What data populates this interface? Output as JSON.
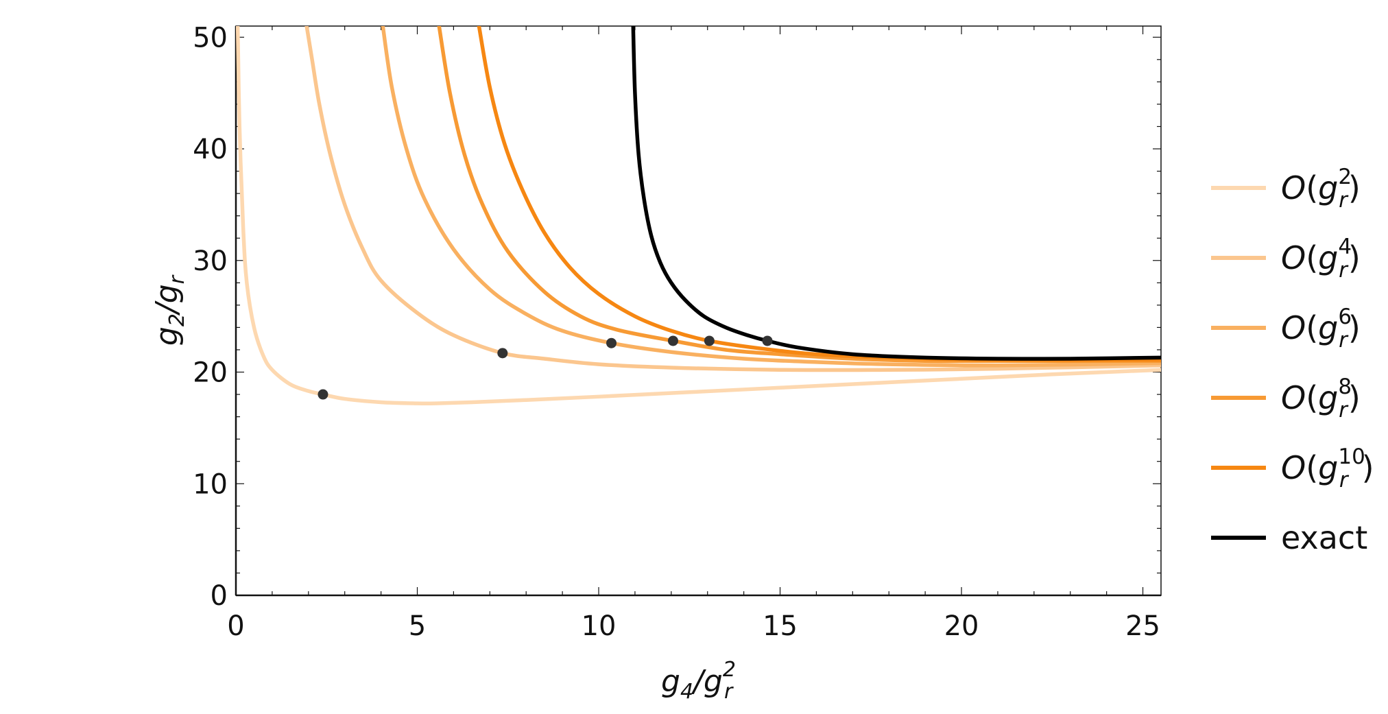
{
  "chart_data": {
    "type": "line",
    "title": "",
    "xlabel": {
      "base": "g",
      "base_sub": "4",
      "sep": "/",
      "den": "g",
      "den_sub": "r",
      "den_sup": "2"
    },
    "ylabel": {
      "base": "g",
      "base_sub": "2",
      "sep": "/",
      "den": "g",
      "den_sub": "r"
    },
    "xlim": [
      0,
      25.5
    ],
    "ylim": [
      0,
      51
    ],
    "xticks": [
      0,
      5,
      10,
      15,
      20,
      25
    ],
    "yticks": [
      0,
      10,
      20,
      30,
      40,
      50
    ],
    "grid": false,
    "legend_position": "right",
    "series": [
      {
        "name": "O(g_r^2)",
        "label_prefix": "O(",
        "label_base": "g",
        "label_sub": "r",
        "label_sup": "2",
        "label_suffix": ")",
        "color": "#fdd8b0",
        "x": [
          0.05,
          0.1,
          0.2,
          0.3,
          0.5,
          0.75,
          1.0,
          1.5,
          2.0,
          2.4,
          3.0,
          4.0,
          5.0,
          5.5,
          6.5,
          8.0,
          10.0,
          12.5,
          15.0,
          17.5,
          20.0,
          22.5,
          25.5
        ],
        "y": [
          51,
          42,
          33,
          28,
          24,
          21.5,
          20.2,
          18.9,
          18.3,
          18.0,
          17.6,
          17.3,
          17.2,
          17.2,
          17.3,
          17.5,
          17.8,
          18.2,
          18.6,
          19.0,
          19.4,
          19.8,
          20.2
        ]
      },
      {
        "name": "O(g_r^4)",
        "label_prefix": "O(",
        "label_base": "g",
        "label_sub": "r",
        "label_sup": "4",
        "label_suffix": ")",
        "color": "#fbc68e",
        "x": [
          1.95,
          2.1,
          2.3,
          2.6,
          3.0,
          3.5,
          4.0,
          5.0,
          6.0,
          7.35,
          8.5,
          10.0,
          12.0,
          15.0,
          18.0,
          21.0,
          25.5
        ],
        "y": [
          51,
          48,
          44,
          39.5,
          35,
          31,
          28.2,
          25.3,
          23.3,
          21.7,
          21.2,
          20.7,
          20.4,
          20.2,
          20.2,
          20.3,
          20.6
        ]
      },
      {
        "name": "O(g_r^6)",
        "label_prefix": "O(",
        "label_base": "g",
        "label_sub": "r",
        "label_sup": "6",
        "label_suffix": ")",
        "color": "#f9b060",
        "x": [
          4.05,
          4.3,
          4.7,
          5.2,
          6.0,
          7.0,
          8.0,
          9.0,
          10.35,
          12.0,
          14.0,
          16.0,
          18.0,
          21.0,
          25.5
        ],
        "y": [
          51,
          45.5,
          40,
          35.5,
          31,
          27.4,
          25.2,
          23.7,
          22.6,
          21.8,
          21.2,
          20.9,
          20.7,
          20.6,
          20.8
        ]
      },
      {
        "name": "O(g_r^8)",
        "label_prefix": "O(",
        "label_base": "g",
        "label_sub": "r",
        "label_sup": "8",
        "label_suffix": ")",
        "color": "#f79a34",
        "x": [
          5.6,
          5.9,
          6.3,
          6.8,
          7.5,
          8.5,
          9.5,
          10.5,
          12.05,
          13.5,
          15.0,
          17.0,
          19.0,
          21.0,
          25.5
        ],
        "y": [
          51,
          45,
          39.5,
          35,
          30.8,
          27.2,
          25.0,
          23.8,
          22.8,
          22.0,
          21.6,
          21.2,
          21.0,
          21.0,
          21.0
        ]
      },
      {
        "name": "O(g_r^10)",
        "label_prefix": "O(",
        "label_base": "g",
        "label_sub": "r",
        "label_sup": "10",
        "label_suffix": ")",
        "color": "#f68712",
        "x": [
          6.7,
          7.0,
          7.4,
          7.9,
          8.5,
          9.2,
          10.0,
          11.0,
          12.0,
          13.05,
          14.5,
          16.0,
          18.0,
          21.0,
          25.5
        ],
        "y": [
          51,
          45.5,
          40.5,
          36.3,
          32.5,
          29.4,
          27.0,
          25.0,
          23.7,
          22.8,
          22.1,
          21.6,
          21.3,
          21.1,
          21.1
        ]
      },
      {
        "name": "exact",
        "label_text": "exact",
        "color": "#000000",
        "x": [
          10.95,
          11.0,
          11.1,
          11.25,
          11.45,
          11.7,
          12.0,
          12.4,
          12.9,
          13.5,
          14.1,
          14.65,
          15.5,
          17.0,
          19.0,
          21.0,
          23.0,
          25.5
        ],
        "y": [
          51,
          45,
          39.5,
          35.5,
          32.2,
          29.8,
          28.0,
          26.4,
          25.0,
          24.0,
          23.3,
          22.8,
          22.2,
          21.6,
          21.3,
          21.2,
          21.2,
          21.3
        ]
      }
    ],
    "markers": {
      "color": "#333333",
      "x": [
        2.4,
        7.35,
        10.35,
        12.05,
        13.05,
        14.65
      ],
      "y": [
        18.0,
        21.7,
        22.6,
        22.8,
        22.8,
        22.8
      ]
    }
  }
}
